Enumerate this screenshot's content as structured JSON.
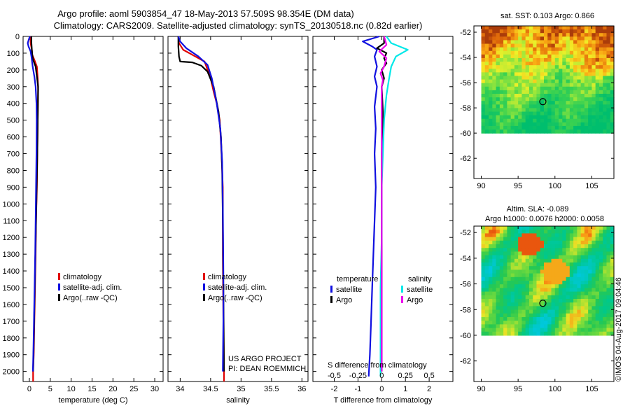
{
  "title": {
    "line1": "Argo profile: aoml 5903854_47 18-May-2013 57.509S 98.354E (DM data)",
    "line2": "Climatology: CARS2009. Satellite-adjusted climatology: synTS_20130518.nc (0.82d earlier)"
  },
  "colors": {
    "red": "#e00000",
    "blue": "#1010e0",
    "black": "#000000",
    "cyan": "#00e8e8",
    "magenta": "#ee00ee"
  },
  "depth_ticks": [
    "0",
    "100",
    "200",
    "300",
    "400",
    "500",
    "600",
    "700",
    "800",
    "900",
    "1000",
    "1100",
    "1200",
    "1300",
    "1400",
    "1500",
    "1600",
    "1700",
    "1800",
    "1900",
    "2000"
  ],
  "chart_data": [
    {
      "type": "line",
      "xlabel": "temperature (deg C)",
      "xlim": [
        -1.5,
        32
      ],
      "ylim": [
        0,
        2060
      ],
      "xticks": [
        "0",
        "5",
        "10",
        "15",
        "20",
        "25",
        "30"
      ],
      "xtick_values": [
        0,
        5,
        10,
        15,
        20,
        25,
        30
      ],
      "legend": [
        "climatology",
        "satellite-adj. clim.",
        "Argo(..raw -QC)"
      ],
      "series": [
        {
          "name": "climatology",
          "color": "red",
          "points": [
            [
              0.3,
              0
            ],
            [
              0.3,
              40
            ],
            [
              0.6,
              80
            ],
            [
              0.7,
              110
            ],
            [
              1.2,
              140
            ],
            [
              1.8,
              180
            ],
            [
              2.0,
              250
            ],
            [
              2.1,
              320
            ],
            [
              2.05,
              400
            ],
            [
              2.0,
              500
            ],
            [
              1.9,
              700
            ],
            [
              1.8,
              900
            ],
            [
              1.6,
              1100
            ],
            [
              1.5,
              1300
            ],
            [
              1.35,
              1500
            ],
            [
              1.2,
              1700
            ],
            [
              1.05,
              1900
            ],
            [
              0.9,
              2000
            ],
            [
              0.9,
              2060
            ]
          ]
        },
        {
          "name": "Argo(..raw -QC)",
          "color": "black",
          "points": [
            [
              0.5,
              0
            ],
            [
              0.5,
              40
            ],
            [
              0.6,
              80
            ],
            [
              0.7,
              110
            ],
            [
              0.9,
              140
            ],
            [
              1.5,
              180
            ],
            [
              1.8,
              240
            ],
            [
              2.1,
              300
            ],
            [
              2.05,
              400
            ],
            [
              2.0,
              500
            ],
            [
              1.9,
              700
            ],
            [
              1.75,
              900
            ],
            [
              1.6,
              1100
            ],
            [
              1.45,
              1300
            ],
            [
              1.3,
              1500
            ],
            [
              1.15,
              1700
            ],
            [
              1.0,
              1900
            ],
            [
              0.9,
              2000
            ]
          ]
        },
        {
          "name": "satellite-adj. clim.",
          "color": "blue",
          "points": [
            [
              0.1,
              0
            ],
            [
              -0.4,
              40
            ],
            [
              -0.2,
              60
            ],
            [
              0.3,
              90
            ],
            [
              0.5,
              120
            ],
            [
              0.8,
              180
            ],
            [
              1.2,
              240
            ],
            [
              1.5,
              300
            ],
            [
              1.7,
              400
            ],
            [
              1.75,
              500
            ],
            [
              1.7,
              700
            ],
            [
              1.6,
              900
            ],
            [
              1.5,
              1100
            ],
            [
              1.4,
              1300
            ],
            [
              1.25,
              1500
            ],
            [
              1.1,
              1700
            ],
            [
              0.95,
              1900
            ],
            [
              0.85,
              2000
            ]
          ]
        }
      ]
    },
    {
      "type": "line",
      "xlabel": "salinity",
      "xlim": [
        33.8,
        36.1
      ],
      "ylim": [
        0,
        2060
      ],
      "xticks": [
        "34",
        "34.5",
        "35",
        "35.5",
        "36"
      ],
      "xtick_values": [
        34,
        34.5,
        35,
        35.5,
        36
      ],
      "legend": [
        "climatology",
        "satellite-adj. clim.",
        "Argo(..raw -QC)"
      ],
      "annotation": [
        "US ARGO PROJECT",
        "PI: DEAN ROEMMICH"
      ],
      "series": [
        {
          "name": "climatology",
          "color": "red",
          "points": [
            [
              33.97,
              0
            ],
            [
              33.98,
              40
            ],
            [
              34.05,
              80
            ],
            [
              34.2,
              110
            ],
            [
              34.4,
              150
            ],
            [
              34.5,
              250
            ],
            [
              34.55,
              330
            ],
            [
              34.6,
              400
            ],
            [
              34.65,
              500
            ],
            [
              34.68,
              700
            ],
            [
              34.7,
              900
            ],
            [
              34.7,
              1300
            ],
            [
              34.71,
              1700
            ],
            [
              34.72,
              2000
            ],
            [
              34.72,
              2060
            ]
          ]
        },
        {
          "name": "Argo(..raw -QC)",
          "color": "black",
          "points": [
            [
              33.97,
              0
            ],
            [
              33.97,
              60
            ],
            [
              33.98,
              120
            ],
            [
              34.0,
              150
            ],
            [
              34.2,
              155
            ],
            [
              34.35,
              175
            ],
            [
              34.45,
              210
            ],
            [
              34.55,
              300
            ],
            [
              34.63,
              450
            ],
            [
              34.67,
              600
            ],
            [
              34.69,
              800
            ],
            [
              34.7,
              1100
            ],
            [
              34.71,
              1500
            ],
            [
              34.72,
              2000
            ]
          ]
        },
        {
          "name": "satellite-adj. clim.",
          "color": "blue",
          "points": [
            [
              33.97,
              0
            ],
            [
              34.0,
              30
            ],
            [
              34.1,
              70
            ],
            [
              34.3,
              120
            ],
            [
              34.45,
              170
            ],
            [
              34.52,
              250
            ],
            [
              34.6,
              400
            ],
            [
              34.66,
              550
            ],
            [
              34.69,
              750
            ],
            [
              34.7,
              1000
            ],
            [
              34.71,
              1400
            ],
            [
              34.71,
              1700
            ],
            [
              34.7,
              2000
            ]
          ]
        }
      ]
    },
    {
      "type": "line",
      "xlabel": "T difference from climatology",
      "top_xlabel": "S difference from climatology",
      "xlim": [
        -2.9,
        3.0
      ],
      "ylim": [
        0,
        2060
      ],
      "xticks": [
        "-2",
        "-1",
        "0",
        "1",
        "2"
      ],
      "xtick_values": [
        -2,
        -1,
        0,
        1,
        2
      ],
      "sticks": [
        "-0.5",
        "-0.25",
        "0",
        "0.25",
        "0.5"
      ],
      "stick_values": [
        -2,
        -1,
        0,
        1,
        2
      ],
      "legend_headers": [
        "temperature",
        "salinity"
      ],
      "legend": [
        "satellite",
        "Argo",
        "satellite",
        "Argo"
      ],
      "series": [
        {
          "name": "temperature satellite",
          "color": "blue",
          "points": [
            [
              -0.1,
              0
            ],
            [
              -0.8,
              30
            ],
            [
              -0.4,
              60
            ],
            [
              -0.2,
              80
            ],
            [
              -0.3,
              120
            ],
            [
              -0.2,
              180
            ],
            [
              -0.3,
              240
            ],
            [
              -0.2,
              300
            ],
            [
              -0.3,
              420
            ],
            [
              -0.25,
              550
            ],
            [
              -0.3,
              700
            ],
            [
              -0.25,
              900
            ],
            [
              -0.3,
              1100
            ],
            [
              -0.35,
              1300
            ],
            [
              -0.4,
              1500
            ],
            [
              -0.45,
              1700
            ],
            [
              -0.5,
              1900
            ],
            [
              -0.55,
              2030
            ]
          ]
        },
        {
          "name": "temperature Argo",
          "color": "black",
          "points": [
            [
              0.1,
              0
            ],
            [
              0.1,
              40
            ],
            [
              -0.2,
              70
            ],
            [
              0.2,
              100
            ],
            [
              0.1,
              130
            ],
            [
              0.2,
              160
            ],
            [
              0.0,
              200
            ],
            [
              0.1,
              250
            ],
            [
              0.0,
              300
            ],
            [
              0.05,
              450
            ],
            [
              0.0,
              700
            ],
            [
              0.0,
              1000
            ],
            [
              0.0,
              1500
            ],
            [
              0.0,
              2000
            ]
          ]
        },
        {
          "name": "salinity satellite",
          "color": "cyan",
          "points": [
            [
              0.2,
              0
            ],
            [
              0.4,
              40
            ],
            [
              1.1,
              80
            ],
            [
              0.6,
              120
            ],
            [
              0.4,
              180
            ],
            [
              0.3,
              260
            ],
            [
              0.2,
              350
            ],
            [
              0.1,
              500
            ],
            [
              0.05,
              700
            ],
            [
              0.0,
              900
            ],
            [
              0.0,
              1200
            ],
            [
              -0.05,
              1500
            ],
            [
              -0.05,
              1800
            ],
            [
              -0.05,
              2030
            ]
          ]
        },
        {
          "name": "salinity Argo",
          "color": "magenta",
          "points": [
            [
              0.1,
              0
            ],
            [
              0.2,
              50
            ],
            [
              -0.1,
              90
            ],
            [
              0.2,
              130
            ],
            [
              0.1,
              180
            ],
            [
              -0.05,
              220
            ],
            [
              0.05,
              260
            ],
            [
              0.0,
              300
            ],
            [
              0.0,
              500
            ],
            [
              0.0,
              800
            ],
            [
              0.0,
              1200
            ],
            [
              0.0,
              1600
            ],
            [
              0.0,
              2000
            ]
          ]
        }
      ]
    },
    {
      "type": "heatmap",
      "title": "sat. SST: 0.103 Argo: 0.866",
      "xticks": [
        "90",
        "95",
        "100",
        "105"
      ],
      "yticks": [
        "-52",
        "-54",
        "-56",
        "-58",
        "-60",
        "-62"
      ],
      "xlim": [
        89,
        108
      ],
      "ylim": [
        -63.6,
        -51.5
      ],
      "data_extent": {
        "lon": [
          90,
          108
        ],
        "lat": [
          -60,
          -51.5
        ]
      },
      "marker": {
        "lon": 98.354,
        "lat": -57.509
      }
    },
    {
      "type": "heatmap",
      "title": "Altim. SLA: -0.089",
      "subtitle": "Argo h1000: 0.0076 h2000: 0.0058",
      "xticks": [
        "90",
        "95",
        "100",
        "105"
      ],
      "yticks": [
        "-52",
        "-54",
        "-56",
        "-58",
        "-60",
        "-62"
      ],
      "xlim": [
        89,
        108
      ],
      "ylim": [
        -63.6,
        -51.5
      ],
      "data_extent": {
        "lon": [
          90,
          108
        ],
        "lat": [
          -60,
          -51.5
        ]
      },
      "marker": {
        "lon": 98.354,
        "lat": -57.509
      }
    }
  ],
  "credit": "©IMOS 04-Aug-2017 09:04:46"
}
